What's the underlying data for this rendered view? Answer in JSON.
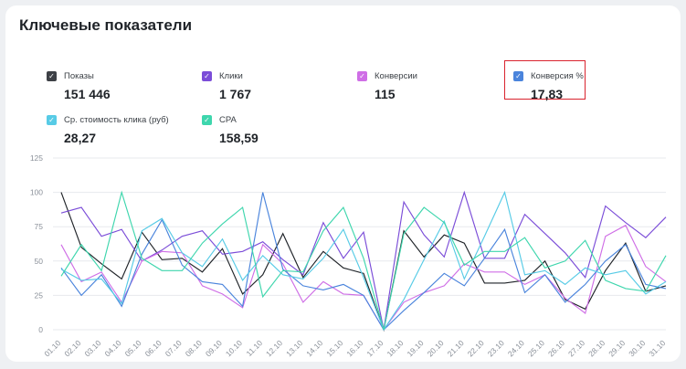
{
  "title": "Ключевые показатели",
  "metrics": [
    {
      "label": "Показы",
      "value": "151 446",
      "color": "#3d4046"
    },
    {
      "label": "Клики",
      "value": "1 767",
      "color": "#7b4dd8"
    },
    {
      "label": "Конверсии",
      "value": "115",
      "color": "#cf6ee6"
    },
    {
      "label": "Конверсия %",
      "value": "17,83",
      "color": "#4a84dc"
    },
    {
      "label": "Ср. стоимость клика (руб)",
      "value": "28,27",
      "color": "#57cbe6"
    },
    {
      "label": "CPA",
      "value": "158,59",
      "color": "#3ed6ad"
    }
  ],
  "chart_data": {
    "type": "line",
    "title": "",
    "xlabel": "",
    "ylabel": "",
    "ylim": [
      0,
      125
    ],
    "yticks": [
      0,
      25,
      50,
      75,
      100,
      125
    ],
    "grid": true,
    "categories": [
      "01.10",
      "02.10",
      "03.10",
      "04.10",
      "05.10",
      "06.10",
      "07.10",
      "08.10",
      "09.10",
      "10.10",
      "11.10",
      "12.10",
      "13.10",
      "14.10",
      "15.10",
      "16.10",
      "17.10",
      "18.10",
      "19.10",
      "20.10",
      "21.10",
      "22.10",
      "23.10",
      "24.10",
      "25.10",
      "26.10",
      "27.10",
      "28.10",
      "29.10",
      "30.10",
      "31.10"
    ],
    "series": [
      {
        "name": "Показы",
        "color": "#1f2328",
        "values": [
          100,
          60,
          48,
          37,
          71,
          51,
          52,
          42,
          59,
          26,
          40,
          70,
          38,
          57,
          45,
          41,
          0,
          72,
          53,
          69,
          63,
          34,
          34,
          36,
          50,
          22,
          15,
          43,
          63,
          28,
          32
        ]
      },
      {
        "name": "Клики",
        "color": "#7b4dd8",
        "values": [
          85,
          89,
          68,
          73,
          50,
          58,
          68,
          72,
          55,
          57,
          64,
          51,
          40,
          78,
          52,
          71,
          0,
          93,
          69,
          53,
          100,
          52,
          52,
          84,
          70,
          56,
          38,
          90,
          78,
          67,
          82
        ]
      },
      {
        "name": "Конверсии",
        "color": "#cf6ee6",
        "values": [
          62,
          35,
          42,
          20,
          50,
          57,
          56,
          32,
          26,
          16,
          62,
          48,
          20,
          35,
          26,
          25,
          0,
          20,
          27,
          32,
          48,
          42,
          42,
          33,
          40,
          23,
          12,
          68,
          76,
          46,
          35
        ]
      },
      {
        "name": "Конверсия %",
        "color": "#4a84dc",
        "values": [
          45,
          25,
          40,
          17,
          55,
          80,
          47,
          35,
          33,
          17,
          100,
          44,
          32,
          29,
          33,
          25,
          0,
          14,
          27,
          41,
          32,
          52,
          73,
          27,
          40,
          20,
          33,
          50,
          62,
          33,
          30
        ]
      },
      {
        "name": "Ср. стоимость клика (руб)",
        "color": "#57cbe6",
        "values": [
          44,
          36,
          37,
          19,
          72,
          81,
          56,
          46,
          66,
          36,
          54,
          40,
          37,
          52,
          73,
          38,
          0,
          22,
          51,
          79,
          37,
          68,
          100,
          40,
          43,
          33,
          45,
          40,
          43,
          26,
          35
        ]
      },
      {
        "name": "CPA",
        "color": "#3ed6ad",
        "values": [
          39,
          62,
          43,
          100,
          52,
          43,
          43,
          63,
          77,
          89,
          24,
          43,
          42,
          72,
          89,
          52,
          0,
          70,
          89,
          78,
          47,
          57,
          57,
          67,
          45,
          50,
          65,
          36,
          30,
          28,
          54
        ]
      }
    ]
  }
}
